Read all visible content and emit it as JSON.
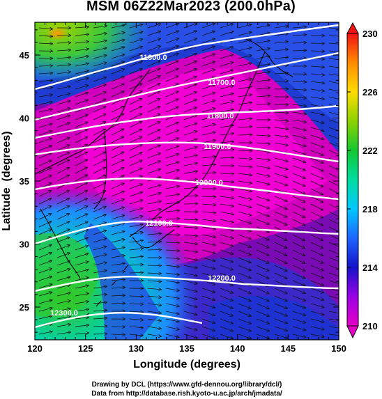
{
  "title": "MSM 06Z22Mar2023 (200.0hPa)",
  "map_data": {
    "type": "contour+temperature",
    "xlabel": "Longitude (degrees)",
    "ylabel": "Latitude  (degrees)",
    "x_ticks": [
      120,
      125,
      130,
      135,
      140,
      145,
      150
    ],
    "y_ticks": [
      25,
      30,
      35,
      40,
      45
    ],
    "xlim": [
      120,
      150
    ],
    "ylim": [
      22.4,
      47.6
    ],
    "contour_labels": [
      "11600.0",
      "11700.0",
      "11800.0",
      "11900.0",
      "12000.0",
      "12100.0",
      "12200.0",
      "12300.0"
    ],
    "colorbar": {
      "min": 210,
      "max": 230,
      "tick_labels": [
        "210",
        "214",
        "218",
        "222",
        "226",
        "230"
      ]
    }
  },
  "footer": {
    "line1": "Drawing by DCL (https://www.gfd-dennou.org/library/dcl/)",
    "line2": "Data from http://database.rish.kyoto-u.ac.jp/arch/jmadata/"
  }
}
